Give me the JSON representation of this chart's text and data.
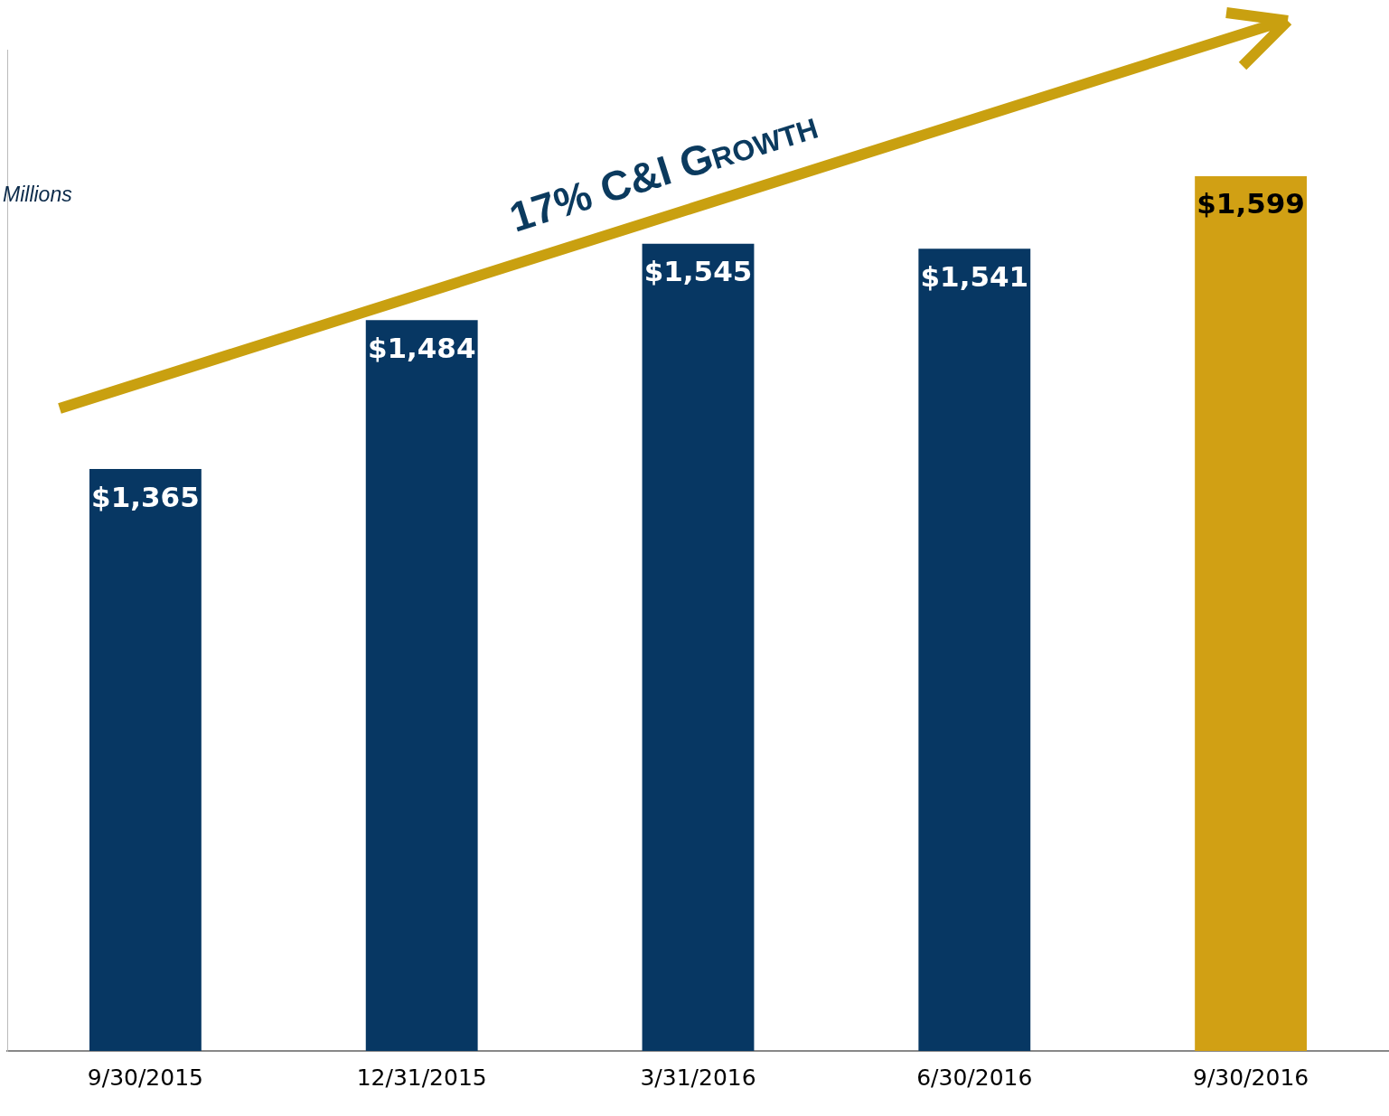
{
  "chart_data": {
    "type": "bar",
    "ylabel": "Millions",
    "annotations": [
      "17% C&I Growth"
    ],
    "categories": [
      "9/30/2015",
      "12/31/2015",
      "3/31/2016",
      "6/30/2016",
      "9/30/2016"
    ],
    "values": [
      1365,
      1484,
      1545,
      1541,
      1599
    ],
    "colors": [
      "#073763",
      "#073763",
      "#073763",
      "#073763",
      "#d1a014"
    ],
    "value_labels": [
      "$1,365",
      "$1,484",
      "$1,545",
      "$1,541",
      "$1,599"
    ],
    "ylim": [
      900,
      1700
    ],
    "tick_labels": "x",
    "grid": false,
    "legend": false
  }
}
